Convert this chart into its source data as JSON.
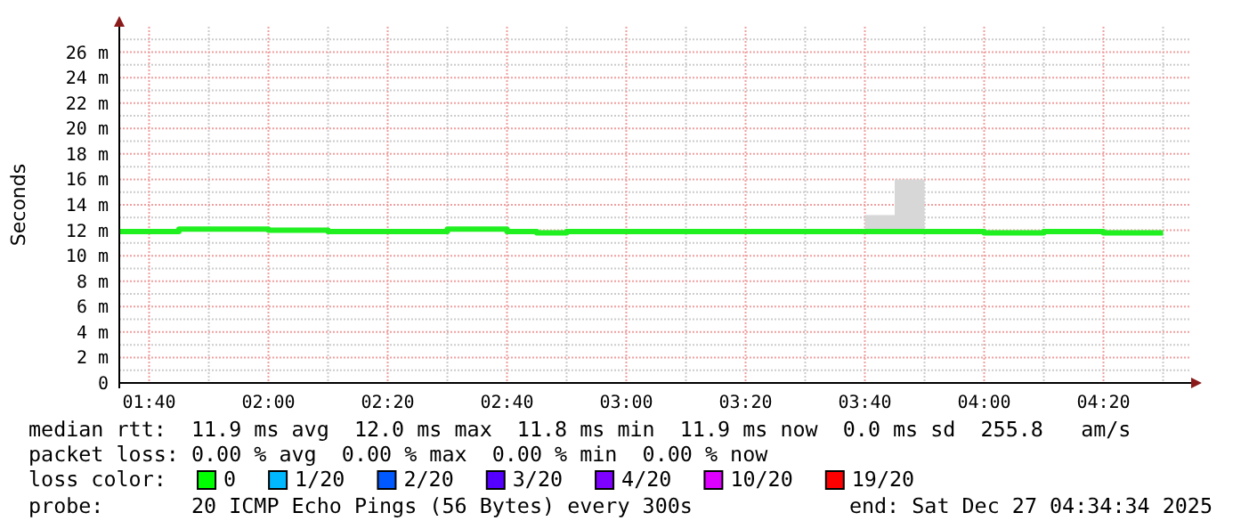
{
  "chart_data": {
    "type": "step",
    "ylabel": "Seconds",
    "x": [
      "2025-12-27T01:35",
      "2025-12-27T01:40",
      "2025-12-27T01:45",
      "2025-12-27T01:50",
      "2025-12-27T01:55",
      "2025-12-27T02:00",
      "2025-12-27T02:05",
      "2025-12-27T02:10",
      "2025-12-27T02:15",
      "2025-12-27T02:20",
      "2025-12-27T02:25",
      "2025-12-27T02:30",
      "2025-12-27T02:35",
      "2025-12-27T02:40",
      "2025-12-27T02:45",
      "2025-12-27T02:50",
      "2025-12-27T02:55",
      "2025-12-27T03:00",
      "2025-12-27T03:05",
      "2025-12-27T03:10",
      "2025-12-27T03:15",
      "2025-12-27T03:20",
      "2025-12-27T03:25",
      "2025-12-27T03:30",
      "2025-12-27T03:35",
      "2025-12-27T03:40",
      "2025-12-27T03:45",
      "2025-12-27T03:50",
      "2025-12-27T03:55",
      "2025-12-27T04:00",
      "2025-12-27T04:05",
      "2025-12-27T04:10",
      "2025-12-27T04:15",
      "2025-12-27T04:20",
      "2025-12-27T04:25",
      "2025-12-27T04:30"
    ],
    "series": [
      {
        "color": "#20f020",
        "values": [
          11.9,
          11.9,
          12.1,
          12.1,
          12.1,
          12.0,
          12.0,
          11.9,
          11.9,
          11.9,
          11.9,
          12.1,
          12.1,
          11.9,
          11.8,
          11.9,
          11.9,
          11.9,
          11.9,
          11.9,
          11.9,
          11.9,
          11.9,
          11.9,
          11.9,
          11.9,
          11.9,
          11.9,
          11.9,
          11.8,
          11.8,
          11.9,
          11.9,
          11.8,
          11.8,
          11.8
        ],
        "lower": [
          11.8,
          11.8,
          11.9,
          11.9,
          11.9,
          11.9,
          11.9,
          11.8,
          11.8,
          11.8,
          11.8,
          11.9,
          11.9,
          11.8,
          11.7,
          11.8,
          11.8,
          11.8,
          11.8,
          11.8,
          11.8,
          11.7,
          11.8,
          11.8,
          11.8,
          11.8,
          11.8,
          11.8,
          11.8,
          11.7,
          11.7,
          11.8,
          11.8,
          11.7,
          11.7,
          11.7
        ],
        "upper": [
          12.0,
          12.0,
          12.2,
          12.2,
          12.2,
          12.2,
          12.2,
          12.0,
          12.1,
          12.0,
          12.1,
          12.2,
          12.2,
          12.1,
          12.0,
          12.0,
          12.0,
          12.0,
          12.0,
          12.0,
          12.0,
          12.0,
          12.0,
          12.0,
          12.0,
          13.2,
          16.0,
          12.0,
          12.0,
          12.0,
          12.0,
          12.0,
          12.0,
          12.0,
          12.0,
          12.0
        ]
      }
    ],
    "xlim": [
      "2025-12-27T01:35",
      "2025-12-27T04:35"
    ],
    "xticks": [
      {
        "value": "2025-12-27T01:40",
        "label": "01:40"
      },
      {
        "value": "2025-12-27T02:00",
        "label": "02:00"
      },
      {
        "value": "2025-12-27T02:20",
        "label": "02:20"
      },
      {
        "value": "2025-12-27T02:40",
        "label": "02:40"
      },
      {
        "value": "2025-12-27T03:00",
        "label": "03:00"
      },
      {
        "value": "2025-12-27T03:20",
        "label": "03:20"
      },
      {
        "value": "2025-12-27T03:40",
        "label": "03:40"
      },
      {
        "value": "2025-12-27T04:00",
        "label": "04:00"
      },
      {
        "value": "2025-12-27T04:20",
        "label": "04:20"
      }
    ],
    "ylim": [
      0,
      28
    ],
    "yticks": [
      0,
      {
        "value": 2,
        "label": "2 m"
      },
      {
        "value": 4,
        "label": "4 m"
      },
      {
        "value": 6,
        "label": "6 m"
      },
      {
        "value": 8,
        "label": "8 m"
      },
      {
        "value": 10,
        "label": "10 m"
      },
      {
        "value": 12,
        "label": "12 m"
      },
      {
        "value": 14,
        "label": "14 m"
      },
      {
        "value": 16,
        "label": "16 m"
      },
      {
        "value": 18,
        "label": "18 m"
      },
      {
        "value": 20,
        "label": "20 m"
      },
      {
        "value": 22,
        "label": "22 m"
      },
      {
        "value": 24,
        "label": "24 m"
      },
      {
        "value": 26,
        "label": "26 m"
      }
    ],
    "grid": true,
    "annotations": [
      "median rtt:  11.9 ms avg  12.0 ms max  11.8 ms min  11.9 ms now  0.0 ms sd  255.8   am/s",
      "packet loss: 0.00 % avg  0.00 % max  0.00 % min  0.00 % now",
      "loss color:",
      "0",
      "1/20",
      "2/20",
      "3/20",
      "4/20",
      "10/20",
      "19/20",
      "probe:       20 ICMP Echo Pings (56 Bytes) every 300s",
      "end: Sat Dec 27 04:34:34 2025"
    ]
  }
}
